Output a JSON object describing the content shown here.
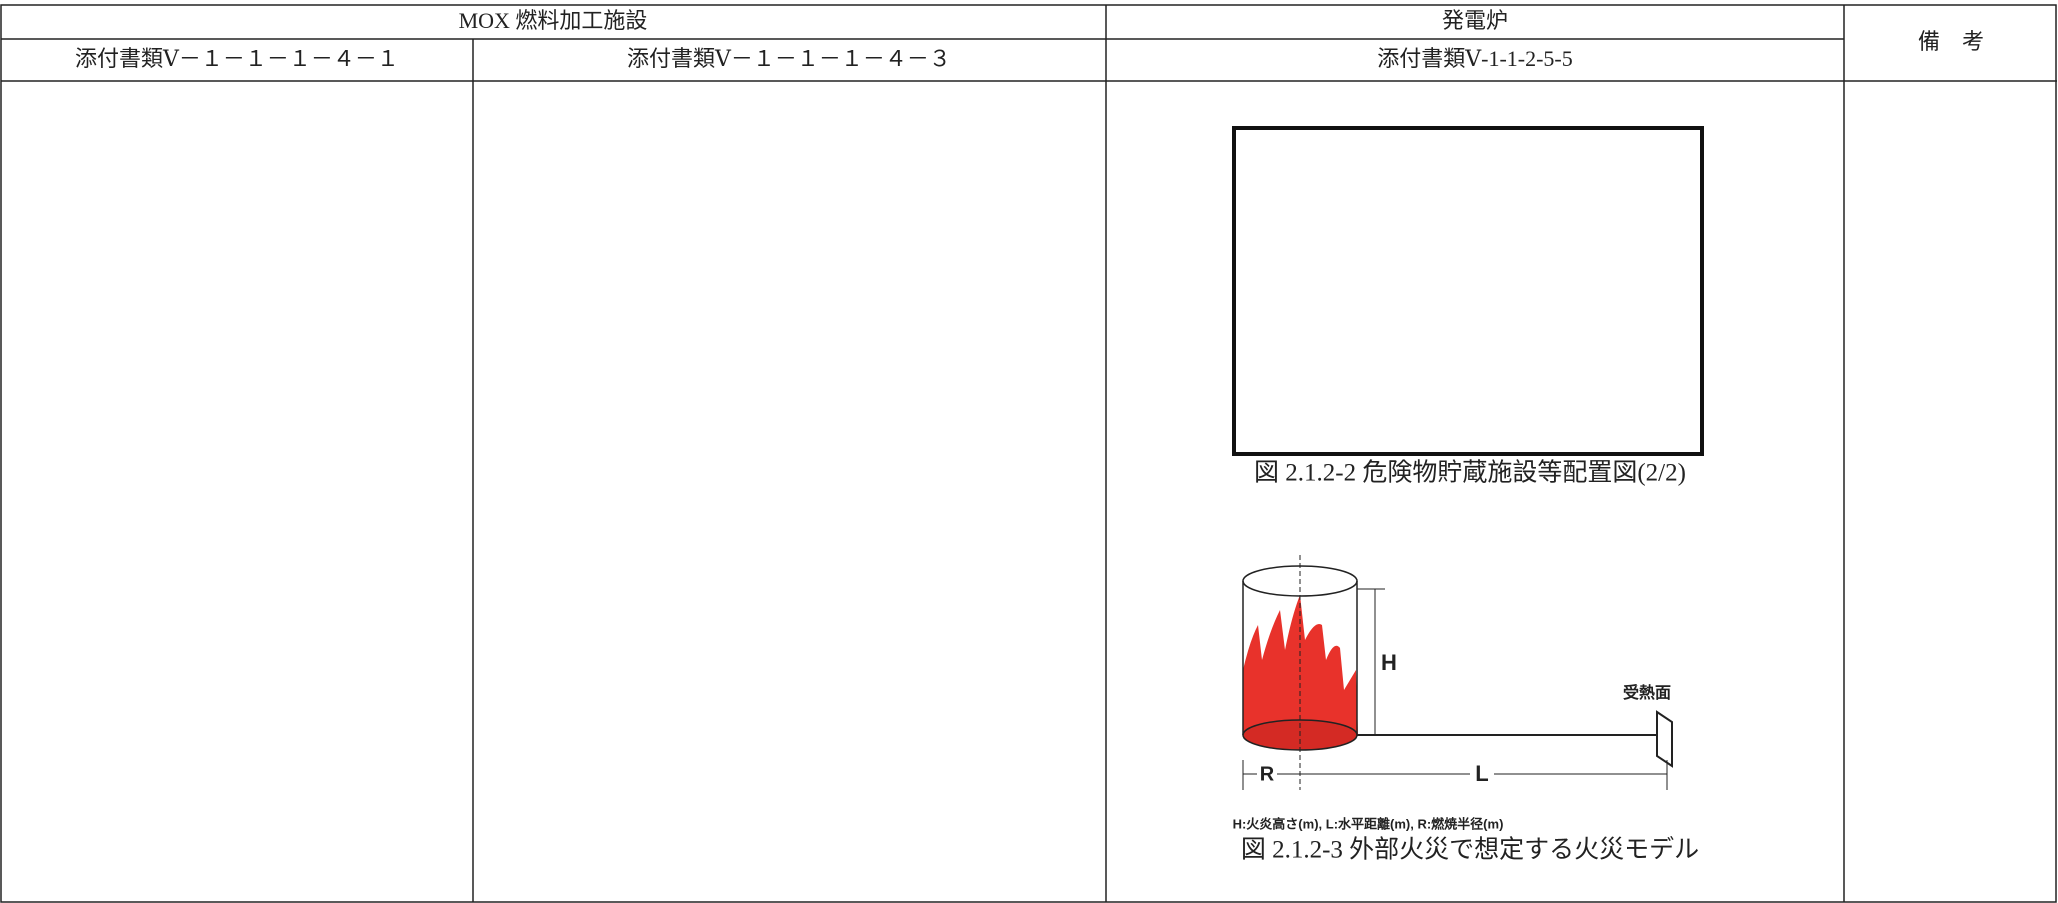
{
  "header": {
    "mox": "MOX 燃料加工施設",
    "reactor": "発電炉",
    "remarks": "備　考",
    "col1": "添付書類Ⅴ－１－１－１－４－１",
    "col2": "添付書類Ⅴ－１－１－１－４－３",
    "col3": "添付書類Ⅴ-1-1-2-5-5"
  },
  "figures": [
    {
      "caption": "図 2.1.2-2 危険物貯蔵施設等配置図(2/2)"
    },
    {
      "caption": "図 2.1.2-3 外部火災で想定する火災モデル",
      "labels": {
        "h": "H",
        "l": "L",
        "r": "R",
        "receiver": "受熱面",
        "legend": "H:火炎高さ(m), L:水平距離(m), R:燃焼半径(m)"
      }
    }
  ]
}
